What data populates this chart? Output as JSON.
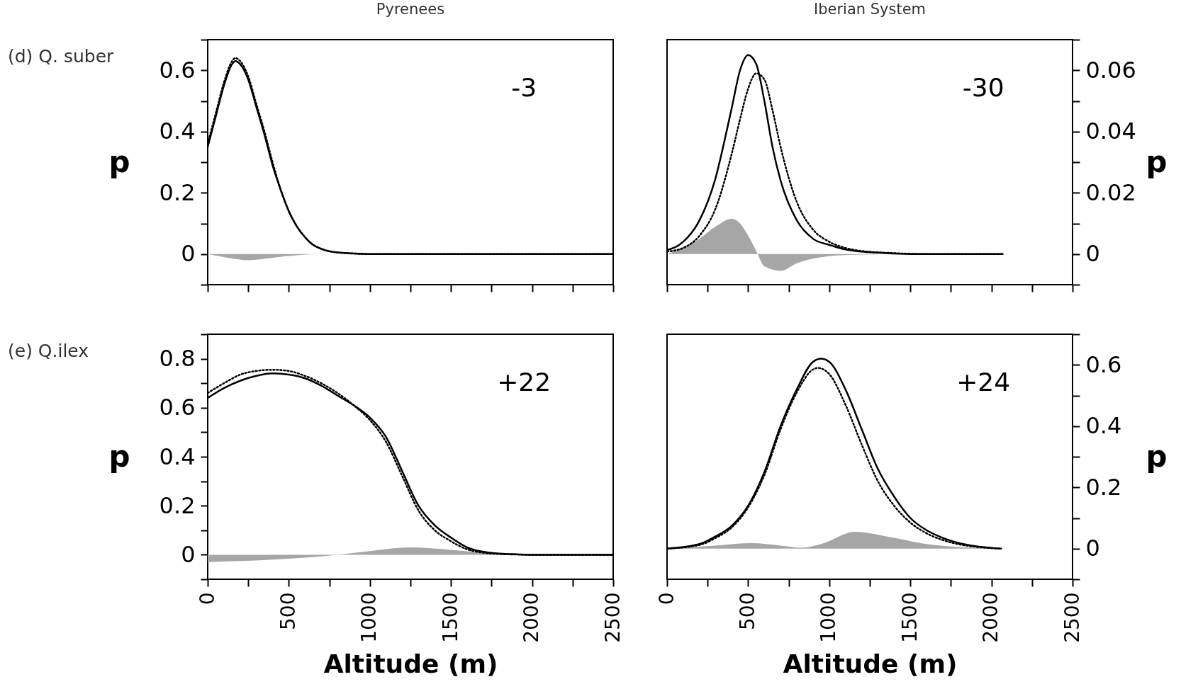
{
  "chart_data": [
    {
      "type": "line",
      "title": "Pyrenees",
      "subtitle": "(d) Q. suber",
      "ylabel": "p",
      "annotations": [
        "-3"
      ],
      "xlim": [
        0,
        2500
      ],
      "xticks": [
        0,
        {
          "value": 250,
          "label": null
        },
        500,
        {
          "value": 750,
          "label": null
        },
        1000,
        {
          "value": 1250,
          "label": null
        },
        1500,
        {
          "value": 1750,
          "label": null
        },
        2000,
        {
          "value": 2250,
          "label": null
        },
        2500
      ],
      "ylim": [
        -0.1,
        0.7
      ],
      "yticks": [
        {
          "value": -0.1,
          "label": null
        },
        0,
        {
          "value": 0.1,
          "label": null
        },
        0.2,
        {
          "value": 0.3,
          "label": null
        },
        0.4,
        {
          "value": 0.5,
          "label": null
        },
        0.6,
        {
          "value": 0.7,
          "label": null
        }
      ],
      "tick_labels": "y",
      "series": [
        {
          "type": "area",
          "color": "#a6a6a6",
          "x": [
            0,
            100,
            250,
            400,
            550,
            700,
            2500
          ],
          "values": [
            0,
            -0.01,
            -0.02,
            -0.012,
            -0.004,
            0,
            0
          ]
        },
        {
          "color": "#000000",
          "line_style": "solid",
          "x": [
            0,
            50,
            100,
            150,
            170,
            200,
            250,
            300,
            350,
            400,
            450,
            500,
            550,
            600,
            650,
            700,
            800,
            900,
            1000,
            1500,
            2000,
            2500
          ],
          "values": [
            0.35,
            0.45,
            0.55,
            0.62,
            0.63,
            0.62,
            0.57,
            0.48,
            0.39,
            0.29,
            0.21,
            0.14,
            0.09,
            0.055,
            0.03,
            0.017,
            0.005,
            0.002,
            0,
            0,
            0,
            0
          ]
        },
        {
          "color": "#000000",
          "line_style": "dotted",
          "x": [
            0,
            50,
            100,
            150,
            170,
            200,
            250,
            300,
            350,
            400,
            450,
            500,
            550,
            600,
            650,
            700,
            800,
            900,
            1000,
            1500,
            2000,
            2500
          ],
          "values": [
            0.36,
            0.46,
            0.56,
            0.63,
            0.64,
            0.63,
            0.58,
            0.49,
            0.4,
            0.3,
            0.21,
            0.14,
            0.09,
            0.055,
            0.03,
            0.017,
            0.005,
            0.002,
            0,
            0,
            0,
            0
          ]
        }
      ]
    },
    {
      "type": "line",
      "title": "Iberian System",
      "y2label": "p",
      "annotations": [
        "-30"
      ],
      "xlim": [
        0,
        2500
      ],
      "xticks": [
        0,
        {
          "value": 250,
          "label": null
        },
        500,
        {
          "value": 750,
          "label": null
        },
        1000,
        {
          "value": 1250,
          "label": null
        },
        1500,
        {
          "value": 1750,
          "label": null
        },
        2000,
        {
          "value": 2250,
          "label": null
        },
        2500
      ],
      "y2lim": [
        -0.01,
        0.07
      ],
      "y2ticks": [
        {
          "value": -0.01,
          "label": null
        },
        0,
        {
          "value": 0.01,
          "label": null
        },
        0.02,
        {
          "value": 0.03,
          "label": null
        },
        0.04,
        {
          "value": 0.05,
          "label": null
        },
        0.06,
        {
          "value": 0.07,
          "label": null
        }
      ],
      "tick_labels": "y",
      "series": [
        {
          "type": "area",
          "axis": "y2",
          "color": "#a6a6a6",
          "x": [
            0,
            200,
            300,
            400,
            450,
            500,
            550,
            600,
            700,
            800,
            900,
            1000,
            1200,
            1500,
            2070
          ],
          "values": [
            0,
            0.005,
            0.009,
            0.0115,
            0.01,
            0.006,
            0.001,
            -0.004,
            -0.0055,
            -0.003,
            -0.0015,
            -0.0007,
            -0.0002,
            0,
            0
          ]
        },
        {
          "axis": "y2",
          "color": "#000000",
          "line_style": "solid",
          "x": [
            0,
            100,
            200,
            300,
            350,
            400,
            450,
            500,
            550,
            600,
            650,
            700,
            800,
            900,
            1000,
            1100,
            1200,
            1400,
            1600,
            2070
          ],
          "values": [
            0.0013,
            0.004,
            0.011,
            0.025,
            0.036,
            0.048,
            0.06,
            0.065,
            0.062,
            0.05,
            0.035,
            0.024,
            0.011,
            0.005,
            0.003,
            0.0015,
            0.0008,
            0.0002,
            0,
            0
          ]
        },
        {
          "axis": "y2",
          "color": "#000000",
          "line_style": "dotted",
          "x": [
            0,
            100,
            200,
            300,
            400,
            450,
            500,
            550,
            600,
            650,
            700,
            800,
            900,
            1000,
            1100,
            1200,
            1400,
            1600,
            2070
          ],
          "values": [
            0.0008,
            0.002,
            0.006,
            0.015,
            0.033,
            0.044,
            0.054,
            0.059,
            0.057,
            0.047,
            0.035,
            0.017,
            0.008,
            0.004,
            0.002,
            0.001,
            0.0003,
            0,
            0
          ]
        }
      ]
    },
    {
      "type": "line",
      "subtitle": "(e) Q.ilex",
      "xlabel": "Altitude (m)",
      "ylabel": "p",
      "annotations": [
        "+22"
      ],
      "xlim": [
        0,
        2500
      ],
      "xticks": [
        0,
        {
          "value": 250,
          "label": null
        },
        500,
        {
          "value": 750,
          "label": null
        },
        1000,
        {
          "value": 1250,
          "label": null
        },
        1500,
        {
          "value": 1750,
          "label": null
        },
        2000,
        {
          "value": 2250,
          "label": null
        },
        2500
      ],
      "ylim": [
        -0.1,
        0.9
      ],
      "yticks": [
        {
          "value": -0.1,
          "label": null
        },
        0,
        {
          "value": 0.1,
          "label": null
        },
        0.2,
        {
          "value": 0.3,
          "label": null
        },
        0.4,
        {
          "value": 0.5,
          "label": null
        },
        0.6,
        {
          "value": 0.7,
          "label": null
        },
        0.8,
        {
          "value": 0.9,
          "label": null
        }
      ],
      "series": [
        {
          "type": "area",
          "color": "#a6a6a6",
          "x": [
            0,
            400,
            800,
            1000,
            1250,
            1500,
            1800,
            2000,
            2500
          ],
          "values": [
            -0.03,
            -0.02,
            0,
            0.015,
            0.03,
            0.02,
            0.003,
            0,
            0
          ]
        },
        {
          "color": "#000000",
          "line_style": "solid",
          "x": [
            0,
            100,
            200,
            300,
            400,
            500,
            600,
            700,
            800,
            900,
            1000,
            1100,
            1200,
            1300,
            1400,
            1500,
            1600,
            1700,
            1800,
            1900,
            2000,
            2500
          ],
          "values": [
            0.64,
            0.68,
            0.71,
            0.73,
            0.74,
            0.735,
            0.72,
            0.69,
            0.65,
            0.61,
            0.56,
            0.48,
            0.34,
            0.2,
            0.12,
            0.07,
            0.03,
            0.012,
            0.005,
            0.002,
            0,
            0
          ]
        },
        {
          "color": "#000000",
          "line_style": "dotted",
          "x": [
            0,
            100,
            200,
            300,
            400,
            500,
            600,
            700,
            800,
            900,
            1000,
            1100,
            1200,
            1300,
            1400,
            1500,
            1600,
            1700,
            1800,
            1900,
            2000,
            2500
          ],
          "values": [
            0.66,
            0.7,
            0.735,
            0.75,
            0.755,
            0.75,
            0.73,
            0.7,
            0.66,
            0.61,
            0.55,
            0.46,
            0.32,
            0.18,
            0.1,
            0.055,
            0.022,
            0.008,
            0.003,
            0.001,
            0,
            0
          ]
        }
      ]
    },
    {
      "type": "line",
      "xlabel": "Altitude (m)",
      "y2label": "p",
      "annotations": [
        "+24"
      ],
      "xlim": [
        0,
        2500
      ],
      "xticks": [
        0,
        {
          "value": 250,
          "label": null
        },
        500,
        {
          "value": 750,
          "label": null
        },
        1000,
        {
          "value": 1250,
          "label": null
        },
        1500,
        {
          "value": 1750,
          "label": null
        },
        2000,
        {
          "value": 2250,
          "label": null
        },
        2500
      ],
      "y2lim": [
        -0.1,
        0.7
      ],
      "y2ticks": [
        {
          "value": -0.1,
          "label": null
        },
        0,
        {
          "value": 0.1,
          "label": null
        },
        0.2,
        {
          "value": 0.3,
          "label": null
        },
        0.4,
        {
          "value": 0.5,
          "label": null
        },
        0.6,
        {
          "value": 0.7,
          "label": null
        }
      ],
      "series": [
        {
          "type": "area",
          "axis": "y2",
          "color": "#a6a6a6",
          "x": [
            0,
            300,
            520,
            700,
            830,
            950,
            1160,
            1400,
            1600,
            1800,
            2060
          ],
          "values": [
            0,
            0.01,
            0.018,
            0.01,
            0.003,
            0.015,
            0.055,
            0.035,
            0.015,
            0.005,
            0
          ]
        },
        {
          "axis": "y2",
          "color": "#000000",
          "line_style": "solid",
          "x": [
            0,
            200,
            300,
            400,
            500,
            600,
            700,
            800,
            900,
            950,
            1000,
            1100,
            1200,
            1300,
            1400,
            1500,
            1600,
            1700,
            1800,
            1900,
            2060
          ],
          "values": [
            0,
            0.015,
            0.04,
            0.075,
            0.14,
            0.25,
            0.4,
            0.52,
            0.61,
            0.62,
            0.61,
            0.52,
            0.39,
            0.26,
            0.17,
            0.1,
            0.06,
            0.035,
            0.018,
            0.008,
            0
          ]
        },
        {
          "axis": "y2",
          "color": "#000000",
          "line_style": "dotted",
          "x": [
            0,
            200,
            300,
            400,
            500,
            600,
            700,
            800,
            900,
            930,
            1000,
            1100,
            1200,
            1300,
            1400,
            1500,
            1600,
            1700,
            1800,
            1900,
            2060
          ],
          "values": [
            0,
            0.012,
            0.035,
            0.07,
            0.135,
            0.24,
            0.39,
            0.51,
            0.585,
            0.59,
            0.57,
            0.47,
            0.34,
            0.22,
            0.14,
            0.085,
            0.05,
            0.028,
            0.014,
            0.006,
            0
          ]
        }
      ]
    }
  ]
}
